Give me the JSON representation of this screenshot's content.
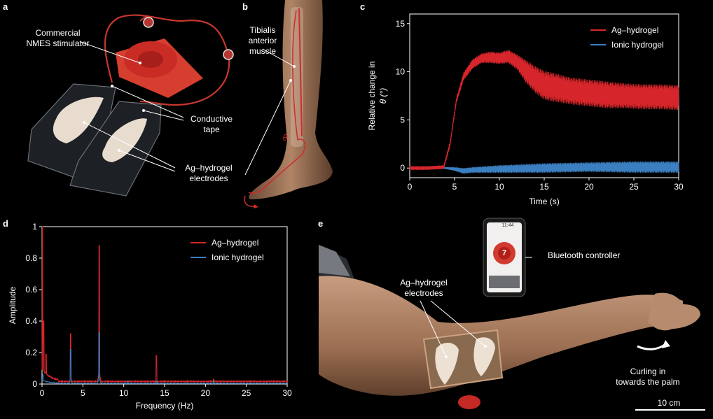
{
  "panels": {
    "a": {
      "letter": "a",
      "labels": {
        "stimulator": "Commercial\nNMES stimulator",
        "tape": "Conductive\ntape",
        "electrodes": "Ag–hydrogel\nelectrodes"
      }
    },
    "b": {
      "letter": "b",
      "labels": {
        "muscle": "Tibialis\nanterior\nmuscle",
        "angle": "θ"
      }
    },
    "c": {
      "letter": "c",
      "xlabel": "Time (s)",
      "ylabel": "Relative change in",
      "ylabel2": "θ (°)"
    },
    "d": {
      "letter": "d",
      "xlabel": "Frequency (Hz)",
      "ylabel": "Amplitude"
    },
    "e": {
      "letter": "e",
      "labels": {
        "controller": "Bluetooth controller",
        "electrodes": "Ag–hydrogel\nelectrodes",
        "curling": "Curling in\ntowards the palm",
        "scale": "10 cm",
        "phone_time": "11:44",
        "phone_level": "7"
      }
    }
  },
  "chart_data": [
    {
      "type": "line",
      "panel": "c",
      "xlabel": "Time (s)",
      "ylabel": "Relative change in θ (°)",
      "xlim": [
        0,
        30
      ],
      "ylim": [
        -1,
        16
      ],
      "xticks": [
        0,
        5,
        10,
        15,
        20,
        25,
        30
      ],
      "yticks": [
        0,
        5,
        10,
        15
      ],
      "legend": "top-right",
      "series": [
        {
          "name": "Ag–hydrogel",
          "color": "#d7262b",
          "x": [
            0,
            2,
            3.8,
            4.5,
            5.2,
            6,
            7,
            8,
            9,
            10,
            11,
            12,
            13,
            14,
            15,
            16,
            18,
            20,
            22,
            24,
            26,
            28,
            30
          ],
          "y": [
            0,
            0,
            0.1,
            2.5,
            7.0,
            9.5,
            10.8,
            11.4,
            11.5,
            11.4,
            11.6,
            11.0,
            10.0,
            9.2,
            8.6,
            8.4,
            8.0,
            7.8,
            7.6,
            7.5,
            7.4,
            7.4,
            7.3
          ],
          "amplitude": [
            0.2,
            0.2,
            0.2,
            0.3,
            0.3,
            0.4,
            0.5,
            0.5,
            0.6,
            0.6,
            0.7,
            0.8,
            1.2,
            1.4,
            1.5,
            1.5,
            1.4,
            1.4,
            1.4,
            1.3,
            1.3,
            1.3,
            1.3
          ]
        },
        {
          "name": "Ionic hydrogel",
          "color": "#3b7fc1",
          "x": [
            0,
            4,
            5,
            6,
            7,
            10,
            15,
            20,
            25,
            30
          ],
          "y": [
            0,
            0,
            -0.1,
            -0.3,
            -0.2,
            -0.1,
            0.0,
            0.1,
            0.1,
            0.1
          ],
          "amplitude": [
            0.1,
            0.1,
            0.2,
            0.3,
            0.3,
            0.4,
            0.5,
            0.5,
            0.6,
            0.6
          ]
        }
      ]
    },
    {
      "type": "line",
      "panel": "d",
      "xlabel": "Frequency (Hz)",
      "ylabel": "Amplitude",
      "xlim": [
        0,
        30
      ],
      "ylim": [
        0,
        1.0
      ],
      "xticks": [
        0,
        5,
        10,
        15,
        20,
        25,
        30
      ],
      "yticks": [
        0,
        0.2,
        0.4,
        0.6,
        0.8,
        1.0
      ],
      "legend": "top-right",
      "series": [
        {
          "name": "Ag–hydrogel",
          "color": "#d7262b",
          "peaks": [
            {
              "x": 0.05,
              "y": 1.0
            },
            {
              "x": 0.2,
              "y": 0.4
            },
            {
              "x": 0.5,
              "y": 0.19
            },
            {
              "x": 3.5,
              "y": 0.32
            },
            {
              "x": 7.0,
              "y": 0.88
            },
            {
              "x": 14.0,
              "y": 0.18
            },
            {
              "x": 21.0,
              "y": 0.03
            }
          ],
          "baseline": 0.02
        },
        {
          "name": "Ionic hydrogel",
          "color": "#3b7fc1",
          "peaks": [
            {
              "x": 0.1,
              "y": 0.06
            },
            {
              "x": 3.5,
              "y": 0.22
            },
            {
              "x": 7.0,
              "y": 0.33
            },
            {
              "x": 10.5,
              "y": 0.02
            },
            {
              "x": 14.0,
              "y": 0.02
            },
            {
              "x": 21.0,
              "y": 0.02
            }
          ],
          "baseline": 0.005
        }
      ]
    }
  ]
}
